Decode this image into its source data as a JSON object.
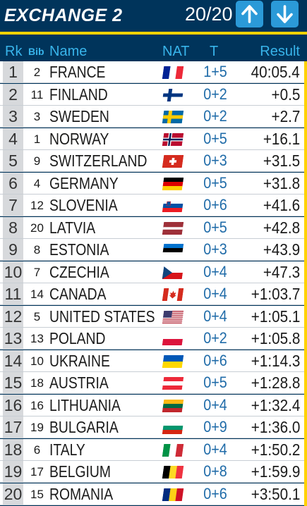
{
  "header": {
    "title": "EXCHANGE 2",
    "pager": "20/20",
    "accent_color": "#ffd200",
    "background_color": "#00345b",
    "button_color": "#2b9ad8",
    "up_icon": "arrow-up-icon",
    "down_icon": "arrow-down-icon"
  },
  "columns": {
    "rank": "Rk",
    "bib": "Bib",
    "name": "Name",
    "nat": "NAT",
    "t": "T",
    "result": "Result"
  },
  "rows": [
    {
      "rank": "1",
      "bib": "2",
      "name": "FRANCE",
      "flag": "FRA",
      "t": "1+5",
      "result": "40:05.4"
    },
    {
      "rank": "2",
      "bib": "11",
      "name": "FINLAND",
      "flag": "FIN",
      "t": "0+2",
      "result": "+0.5"
    },
    {
      "rank": "3",
      "bib": "3",
      "name": "SWEDEN",
      "flag": "SWE",
      "t": "0+2",
      "result": "+2.7"
    },
    {
      "rank": "4",
      "bib": "1",
      "name": "NORWAY",
      "flag": "NOR",
      "t": "0+5",
      "result": "+16.1"
    },
    {
      "rank": "5",
      "bib": "9",
      "name": "SWITZERLAND",
      "flag": "SUI",
      "t": "0+3",
      "result": "+31.5"
    },
    {
      "rank": "6",
      "bib": "4",
      "name": "GERMANY",
      "flag": "GER",
      "t": "0+5",
      "result": "+31.8"
    },
    {
      "rank": "7",
      "bib": "12",
      "name": "SLOVENIA",
      "flag": "SLO",
      "t": "0+6",
      "result": "+41.6"
    },
    {
      "rank": "8",
      "bib": "20",
      "name": "LATVIA",
      "flag": "LAT",
      "t": "0+5",
      "result": "+42.8"
    },
    {
      "rank": "9",
      "bib": "8",
      "name": "ESTONIA",
      "flag": "EST",
      "t": "0+3",
      "result": "+43.9"
    },
    {
      "rank": "10",
      "bib": "7",
      "name": "CZECHIA",
      "flag": "CZE",
      "t": "0+4",
      "result": "+47.3"
    },
    {
      "rank": "11",
      "bib": "14",
      "name": "CANADA",
      "flag": "CAN",
      "t": "0+4",
      "result": "+1:03.7"
    },
    {
      "rank": "12",
      "bib": "5",
      "name": "UNITED STATES",
      "flag": "USA",
      "t": "0+4",
      "result": "+1:05.1"
    },
    {
      "rank": "13",
      "bib": "13",
      "name": "POLAND",
      "flag": "POL",
      "t": "0+2",
      "result": "+1:05.8"
    },
    {
      "rank": "14",
      "bib": "10",
      "name": "UKRAINE",
      "flag": "UKR",
      "t": "0+6",
      "result": "+1:14.3"
    },
    {
      "rank": "15",
      "bib": "18",
      "name": "AUSTRIA",
      "flag": "AUT",
      "t": "0+5",
      "result": "+1:28.8"
    },
    {
      "rank": "16",
      "bib": "16",
      "name": "LITHUANIA",
      "flag": "LTU",
      "t": "0+4",
      "result": "+1:32.4"
    },
    {
      "rank": "17",
      "bib": "19",
      "name": "BULGARIA",
      "flag": "BUL",
      "t": "0+9",
      "result": "+1:36.0"
    },
    {
      "rank": "18",
      "bib": "6",
      "name": "ITALY",
      "flag": "ITA",
      "t": "0+4",
      "result": "+1:50.2"
    },
    {
      "rank": "19",
      "bib": "17",
      "name": "BELGIUM",
      "flag": "BEL",
      "t": "0+8",
      "result": "+1:59.9"
    },
    {
      "rank": "20",
      "bib": "15",
      "name": "ROMANIA",
      "flag": "ROU",
      "t": "0+6",
      "result": "+3:50.1"
    }
  ]
}
